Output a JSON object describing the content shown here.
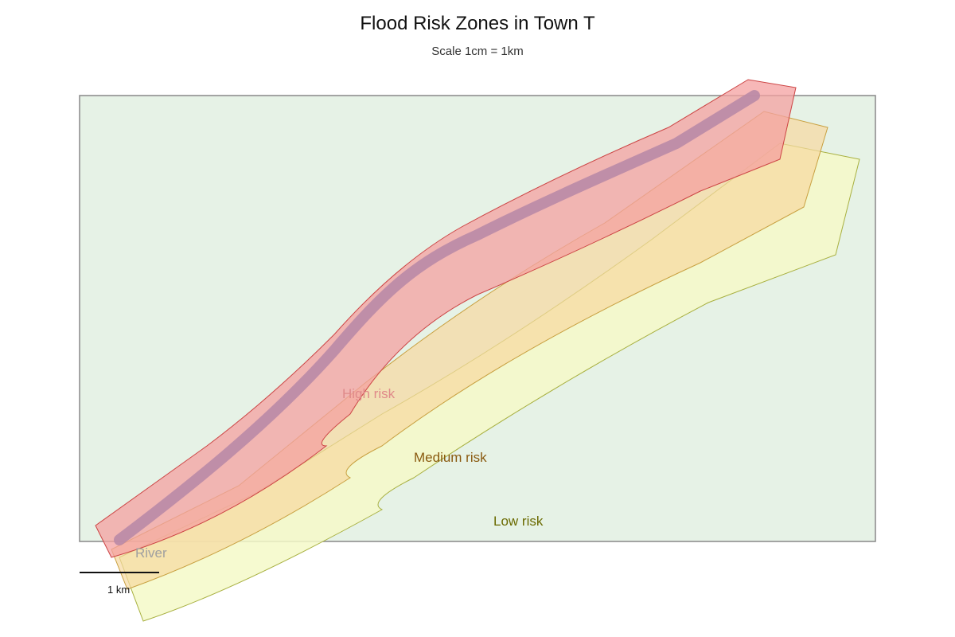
{
  "map": {
    "title": "Flood Risk Zones in Town T",
    "subtitle": "Scale 1cm = 1km",
    "river_label": "River",
    "scale_bar_label": "1 km",
    "zones": [
      {
        "label": "High risk",
        "color": "#f08080"
      },
      {
        "label": "Medium risk",
        "color": "#f7c98a"
      },
      {
        "label": "Low risk",
        "color": "#f4f7c0"
      }
    ],
    "colors": {
      "town_area": "#e6f2e6",
      "town_border": "#888888",
      "river": "#b98aa6",
      "high_risk_fill": "#f4a0a0",
      "high_risk_border": "#cc4444",
      "medium_risk_fill": "#f7d9a0",
      "medium_risk_border": "#c8a040",
      "low_risk_fill": "#f4f9c8",
      "low_risk_border": "#a8b040",
      "high_label": "#e08a8a",
      "medium_label": "#8a5a10",
      "low_label": "#6a6a00",
      "river_label": "#a0a0a0"
    }
  }
}
